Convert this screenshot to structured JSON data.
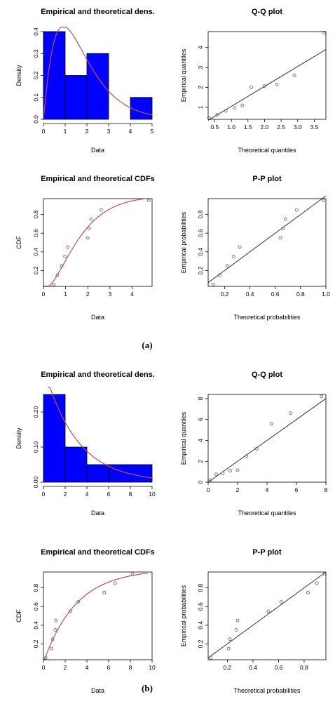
{
  "panels": [
    {
      "letter": "(a)",
      "charts": [
        {
          "type": "bar",
          "title": "Empirical and theoretical dens.",
          "xlabel": "Data",
          "ylabel": "Density",
          "xlim": [
            0,
            5
          ],
          "ylim": [
            0,
            0.4
          ],
          "xticks": [
            0,
            1,
            2,
            3,
            4,
            5
          ],
          "yticks": [
            0.0,
            0.1,
            0.2,
            0.3,
            0.4
          ],
          "bins": [
            {
              "x0": 0,
              "x1": 1,
              "value": 0.4
            },
            {
              "x0": 1,
              "x1": 2,
              "value": 0.2
            },
            {
              "x0": 2,
              "x1": 3,
              "value": 0.3
            },
            {
              "x0": 3,
              "x1": 4,
              "value": 0.0
            },
            {
              "x0": 4,
              "x1": 5,
              "value": 0.1
            }
          ],
          "curve": {
            "family": "gamma",
            "shape": 2.1,
            "rate": 1.2,
            "points_x": [
              0,
              0.25,
              0.5,
              0.75,
              1,
              1.25,
              1.5,
              2,
              2.5,
              3,
              3.5,
              4,
              4.5,
              5
            ]
          },
          "bar_color": "#0000ff",
          "curve_color": "#c0504d"
        },
        {
          "type": "scatter",
          "title": "Q-Q plot",
          "xlabel": "Theoretical quantiles",
          "ylabel": "Empirical quantiles",
          "xlim": [
            0.3,
            3.85
          ],
          "ylim": [
            0.4,
            4.8
          ],
          "xticks": [
            0.5,
            1.0,
            1.5,
            2.0,
            2.5,
            3.0,
            3.5
          ],
          "yticks": [
            1,
            2,
            3,
            4
          ],
          "points": [
            [
              0.33,
              0.47
            ],
            [
              0.57,
              0.63
            ],
            [
              0.83,
              0.82
            ],
            [
              1.1,
              0.97
            ],
            [
              1.33,
              1.1
            ],
            [
              1.6,
              2.0
            ],
            [
              2.0,
              2.07
            ],
            [
              2.37,
              2.15
            ],
            [
              2.9,
              2.6
            ],
            [
              3.8,
              4.75
            ]
          ],
          "line": [
            [
              0.3,
              0.35
            ],
            [
              3.85,
              3.9
            ]
          ],
          "point_color": "#5a6bb8",
          "line_color": "#333333"
        },
        {
          "type": "scatter",
          "title": "Empirical and theoretical CDFs",
          "xlabel": "Data",
          "ylabel": "CDF",
          "xlim": [
            0,
            4.9
          ],
          "ylim": [
            0.03,
            0.97
          ],
          "xticks": [
            0,
            1,
            2,
            3,
            4
          ],
          "yticks": [
            0.2,
            0.4,
            0.6,
            0.8
          ],
          "points": [
            [
              0.47,
              0.05
            ],
            [
              0.63,
              0.15
            ],
            [
              0.82,
              0.25
            ],
            [
              0.97,
              0.35
            ],
            [
              1.1,
              0.45
            ],
            [
              2.0,
              0.55
            ],
            [
              2.07,
              0.65
            ],
            [
              2.15,
              0.75
            ],
            [
              2.6,
              0.85
            ],
            [
              4.75,
              0.95
            ]
          ],
          "curve": {
            "family": "gamma",
            "shape": 2.1,
            "rate": 1.2,
            "points_x": [
              0,
              0.3,
              0.6,
              0.9,
              1.2,
              1.5,
              1.8,
              2.1,
              2.4,
              2.7,
              3.0,
              3.3,
              3.6,
              3.9,
              4.2,
              4.5
            ]
          },
          "point_color": "#5a6bb8",
          "curve_color": "#c0504d"
        },
        {
          "type": "scatter",
          "title": "P-P plot",
          "xlabel": "Theoretical probabilities",
          "ylabel": "Empirical probabilities",
          "xlim": [
            0.07,
            1.0
          ],
          "ylim": [
            0.03,
            0.97
          ],
          "xticks": [
            0.2,
            0.4,
            0.6,
            0.8,
            1.0
          ],
          "yticks": [
            0.2,
            0.4,
            0.6,
            0.8
          ],
          "points": [
            [
              0.11,
              0.05
            ],
            [
              0.16,
              0.15
            ],
            [
              0.22,
              0.25
            ],
            [
              0.27,
              0.35
            ],
            [
              0.32,
              0.45
            ],
            [
              0.64,
              0.55
            ],
            [
              0.66,
              0.65
            ],
            [
              0.68,
              0.75
            ],
            [
              0.77,
              0.85
            ],
            [
              0.98,
              0.95
            ]
          ],
          "line": [
            [
              0.07,
              0.07
            ],
            [
              1.0,
              1.0
            ]
          ],
          "point_color": "#5a6bb8",
          "line_color": "#333333"
        }
      ]
    },
    {
      "letter": "(b)",
      "charts": [
        {
          "type": "bar",
          "title": "Empirical and theoretical dens.",
          "xlabel": "Data",
          "ylabel": "Density",
          "xlim": [
            0,
            10
          ],
          "ylim": [
            0,
            0.25
          ],
          "xticks": [
            0,
            2,
            4,
            6,
            8,
            10
          ],
          "yticks": [
            0.0,
            0.1,
            0.2
          ],
          "ytick_labels": [
            "0.00",
            "0.10",
            "0.20"
          ],
          "bins": [
            {
              "x0": 0,
              "x1": 2,
              "value": 0.25
            },
            {
              "x0": 2,
              "x1": 4,
              "value": 0.1
            },
            {
              "x0": 4,
              "x1": 6,
              "value": 0.05
            },
            {
              "x0": 6,
              "x1": 10,
              "value": 0.05
            }
          ],
          "curve": {
            "family": "exponential",
            "rate": 0.33,
            "points_x": [
              0.4,
              1,
              1.5,
              2,
              3,
              4,
              5,
              6,
              7,
              8,
              9,
              10
            ]
          },
          "bar_color": "#0000ff",
          "curve_color": "#c0504d"
        },
        {
          "type": "scatter",
          "title": "Q-Q plot",
          "xlabel": "Theoretical quantiles",
          "ylabel": "Empirical quantiles",
          "xlim": [
            0,
            8
          ],
          "ylim": [
            0,
            8.4
          ],
          "xticks": [
            0,
            2,
            4,
            6,
            8
          ],
          "yticks": [
            0,
            2,
            4,
            6,
            8
          ],
          "points": [
            [
              0.15,
              0.2
            ],
            [
              0.55,
              0.75
            ],
            [
              1.0,
              0.85
            ],
            [
              1.5,
              1.1
            ],
            [
              2.0,
              1.15
            ],
            [
              2.6,
              2.5
            ],
            [
              3.3,
              3.2
            ],
            [
              4.3,
              5.6
            ],
            [
              5.6,
              6.6
            ],
            [
              7.7,
              8.2
            ]
          ],
          "line": [
            [
              0,
              0.0
            ],
            [
              8,
              8.0
            ]
          ],
          "point_color": "#5a6bb8",
          "line_color": "#333333"
        },
        {
          "type": "scatter",
          "title": "Empirical and theoretical CDFs",
          "xlabel": "Data",
          "ylabel": "CDF",
          "xlim": [
            0,
            10
          ],
          "ylim": [
            0.03,
            0.97
          ],
          "xticks": [
            0,
            2,
            4,
            6,
            8,
            10
          ],
          "yticks": [
            0.2,
            0.4,
            0.6,
            0.8
          ],
          "points": [
            [
              0.2,
              0.05
            ],
            [
              0.75,
              0.15
            ],
            [
              0.85,
              0.25
            ],
            [
              1.1,
              0.35
            ],
            [
              1.15,
              0.45
            ],
            [
              2.5,
              0.55
            ],
            [
              3.2,
              0.65
            ],
            [
              5.6,
              0.75
            ],
            [
              6.6,
              0.85
            ],
            [
              8.2,
              0.95
            ]
          ],
          "curve": {
            "family": "exponential",
            "rate": 0.33,
            "points_x": [
              0,
              0.5,
              1,
              1.5,
              2,
              2.5,
              3,
              4,
              5,
              6,
              7,
              8,
              9,
              9.6
            ]
          },
          "point_color": "#5a6bb8",
          "curve_color": "#c0504d"
        },
        {
          "type": "scatter",
          "title": "P-P plot",
          "xlabel": "Theoretical probabilities",
          "ylabel": "Empirical probabilities",
          "xlim": [
            0.05,
            0.97
          ],
          "ylim": [
            0.03,
            0.97
          ],
          "xticks": [
            0.2,
            0.4,
            0.6,
            0.8
          ],
          "yticks": [
            0.2,
            0.4,
            0.6,
            0.8
          ],
          "points": [
            [
              0.07,
              0.05
            ],
            [
              0.21,
              0.15
            ],
            [
              0.22,
              0.25
            ],
            [
              0.27,
              0.35
            ],
            [
              0.28,
              0.45
            ],
            [
              0.52,
              0.55
            ],
            [
              0.62,
              0.65
            ],
            [
              0.83,
              0.75
            ],
            [
              0.9,
              0.85
            ],
            [
              0.96,
              0.95
            ]
          ],
          "line": [
            [
              0.05,
              0.05
            ],
            [
              0.97,
              0.97
            ]
          ],
          "point_color": "#5a6bb8",
          "line_color": "#333333"
        }
      ]
    }
  ]
}
